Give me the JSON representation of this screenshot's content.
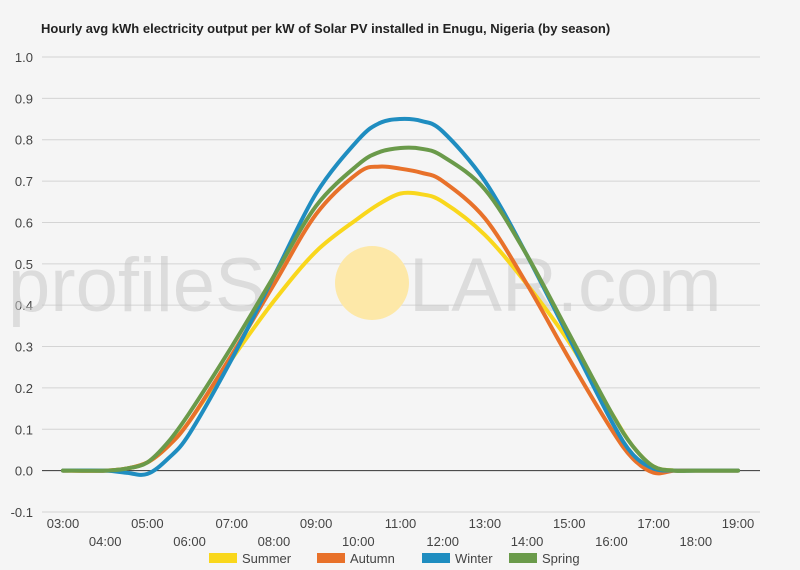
{
  "watermark": {
    "text_before": "profileS",
    "text_after": "LAR.com",
    "sun_color": "#fde8a8"
  },
  "chart_data": {
    "type": "line",
    "title": "Hourly avg kWh electricity output per kW of Solar PV installed in Enugu, Nigeria (by season)",
    "xlabel": "",
    "ylabel": "",
    "ylim": [
      -0.1,
      1.0
    ],
    "yticks": [
      "-0.1",
      "0.0",
      "0.1",
      "0.2",
      "0.3",
      "0.4",
      "0.5",
      "0.6",
      "0.7",
      "0.8",
      "0.9",
      "1.0"
    ],
    "xlim": [
      3,
      19
    ],
    "xticks_upper": [
      "03:00",
      "05:00",
      "07:00",
      "09:00",
      "11:00",
      "13:00",
      "15:00",
      "17:00",
      "19:00"
    ],
    "xticks_lower": [
      "04:00",
      "06:00",
      "08:00",
      "10:00",
      "12:00",
      "14:00",
      "16:00",
      "18:00"
    ],
    "grid": true,
    "legend_position": "bottom",
    "x": [
      3,
      4,
      4.5,
      5,
      5.5,
      6,
      7,
      8,
      9,
      10,
      10.5,
      11,
      11.5,
      12,
      13,
      14,
      15,
      16,
      16.5,
      17,
      17.5,
      18,
      19
    ],
    "series": [
      {
        "name": "Summer",
        "color": "#f9d71c",
        "values": [
          0.0,
          0.0,
          0.005,
          0.02,
          0.06,
          0.12,
          0.27,
          0.41,
          0.53,
          0.61,
          0.645,
          0.67,
          0.668,
          0.65,
          0.57,
          0.45,
          0.31,
          0.14,
          0.06,
          0.01,
          0.0,
          0.0,
          0.0
        ]
      },
      {
        "name": "Autumn",
        "color": "#e8712a",
        "values": [
          0.0,
          0.0,
          0.005,
          0.02,
          0.06,
          0.12,
          0.28,
          0.45,
          0.62,
          0.72,
          0.735,
          0.73,
          0.72,
          0.7,
          0.61,
          0.45,
          0.27,
          0.1,
          0.03,
          -0.005,
          0.0,
          0.0,
          0.0
        ]
      },
      {
        "name": "Winter",
        "color": "#1f8dc0",
        "values": [
          0.0,
          0.0,
          -0.005,
          -0.008,
          0.03,
          0.09,
          0.27,
          0.47,
          0.67,
          0.8,
          0.84,
          0.85,
          0.845,
          0.82,
          0.7,
          0.52,
          0.32,
          0.12,
          0.04,
          0.005,
          0.0,
          0.0,
          0.0
        ]
      },
      {
        "name": "Spring",
        "color": "#6a9a4a",
        "values": [
          0.0,
          0.0,
          0.005,
          0.02,
          0.07,
          0.14,
          0.3,
          0.47,
          0.64,
          0.74,
          0.77,
          0.78,
          0.778,
          0.76,
          0.68,
          0.52,
          0.33,
          0.14,
          0.06,
          0.01,
          0.0,
          0.0,
          0.0
        ]
      }
    ]
  }
}
